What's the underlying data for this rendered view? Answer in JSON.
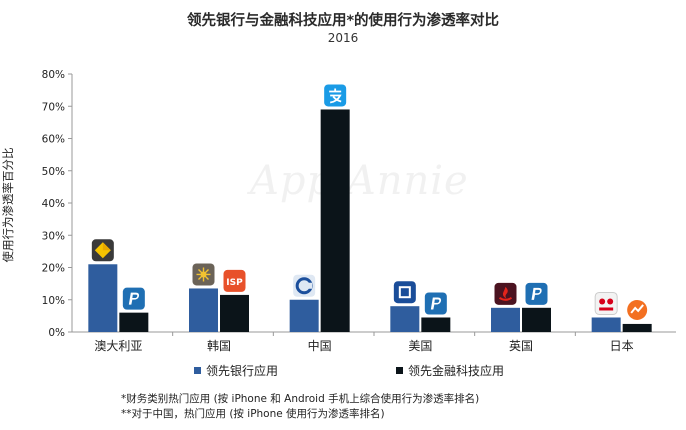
{
  "chart_data": {
    "type": "bar",
    "title": "领先银行与金融科技应用*的使用行为渗透率对比",
    "subtitle": "2016",
    "ylabel": "使用行为渗透率百分比",
    "xlabel": "",
    "ylim": [
      0,
      80
    ],
    "yticks": [
      "0%",
      "10%",
      "20%",
      "30%",
      "40%",
      "50%",
      "60%",
      "70%",
      "80%"
    ],
    "categories": [
      "澳大利亚",
      "韩国",
      "中国",
      "美国",
      "英国",
      "日本"
    ],
    "series": [
      {
        "name": "领先银行应用",
        "color": "#2f5d9e",
        "values": [
          21,
          13.5,
          10,
          8,
          7.5,
          4.5
        ]
      },
      {
        "name": "领先金融科技应用",
        "color": "#0b1419",
        "values": [
          6,
          11.5,
          69,
          4.5,
          7.5,
          2.5
        ]
      }
    ],
    "icons": [
      [
        "commbank-icon",
        "paypal-icon"
      ],
      [
        "kb-bank-icon",
        "isp-icon"
      ],
      [
        "ccb-icon",
        "alipay-icon"
      ],
      [
        "chase-icon",
        "paypal-icon"
      ],
      [
        "santander-icon",
        "paypal-icon"
      ],
      [
        "mufg-icon",
        "money-forward-icon"
      ]
    ],
    "watermark": "App Annie",
    "legend_position": "bottom",
    "grid": false
  },
  "notes": [
    "*财务类别热门应用 (按 iPhone 和 Android 手机上综合使用行为渗透率排名)",
    "**对于中国，热门应用 (按 iPhone 使用行为渗透率排名)"
  ],
  "icon_text": {
    "isp": "ISP"
  },
  "colors": {
    "axis": "#999999",
    "bank": "#2f5d9e",
    "fintech": "#0b1419"
  }
}
